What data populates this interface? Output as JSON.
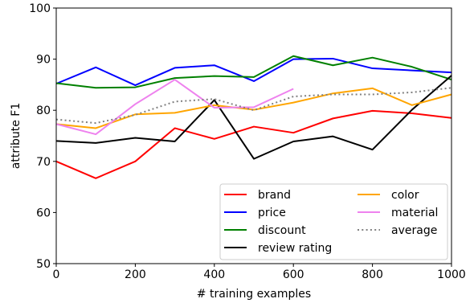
{
  "chart_data": {
    "type": "line",
    "xlabel": "# training examples",
    "ylabel": "attribute F1",
    "xlim": [
      0,
      1000
    ],
    "ylim": [
      50,
      100
    ],
    "xticks": [
      0,
      200,
      400,
      600,
      800,
      1000
    ],
    "yticks": [
      50,
      60,
      70,
      80,
      90,
      100
    ],
    "grid": false,
    "legend_position": "lower-right",
    "series": [
      {
        "name": "brand",
        "color": "#ff0000",
        "style": "solid",
        "x": [
          0,
          100,
          200,
          300,
          400,
          500,
          600,
          700,
          800,
          900,
          1000
        ],
        "y": [
          70.0,
          66.7,
          70.0,
          76.5,
          74.4,
          76.8,
          75.6,
          78.4,
          79.9,
          79.4,
          78.5
        ]
      },
      {
        "name": "price",
        "color": "#0000ff",
        "style": "solid",
        "x": [
          0,
          100,
          200,
          300,
          400,
          500,
          600,
          700,
          800,
          900,
          1000
        ],
        "y": [
          85.2,
          88.4,
          84.9,
          88.3,
          88.8,
          85.7,
          90.0,
          90.1,
          88.2,
          87.8,
          87.4
        ]
      },
      {
        "name": "discount",
        "color": "#008000",
        "style": "solid",
        "x": [
          0,
          100,
          200,
          300,
          400,
          500,
          600,
          700,
          800,
          900,
          1000
        ],
        "y": [
          85.3,
          84.4,
          84.5,
          86.3,
          86.7,
          86.5,
          90.6,
          88.8,
          90.3,
          88.5,
          86.0
        ]
      },
      {
        "name": "review rating",
        "color": "#000000",
        "style": "solid",
        "x": [
          0,
          100,
          200,
          300,
          400,
          500,
          600,
          700,
          800,
          900,
          1000
        ],
        "y": [
          74.0,
          73.6,
          74.6,
          73.9,
          82.0,
          70.5,
          73.9,
          74.9,
          72.3,
          80.1,
          86.8
        ]
      },
      {
        "name": "color",
        "color": "#ffa500",
        "style": "solid",
        "x": [
          0,
          100,
          200,
          300,
          400,
          500,
          600,
          700,
          800,
          900,
          1000
        ],
        "y": [
          77.3,
          76.5,
          79.2,
          79.5,
          81.0,
          80.1,
          81.5,
          83.3,
          84.3,
          81.0,
          83.1
        ]
      },
      {
        "name": "material",
        "color": "#ee82ee",
        "style": "solid",
        "x": [
          0,
          100,
          200,
          300,
          400,
          500,
          600
        ],
        "y": [
          77.3,
          75.3,
          81.2,
          86.0,
          80.5,
          80.6,
          84.2
        ]
      },
      {
        "name": "average",
        "color": "#808080",
        "style": "dotted",
        "x": [
          0,
          100,
          200,
          300,
          400,
          500,
          600,
          700,
          800,
          900,
          1000
        ],
        "y": [
          78.2,
          77.5,
          79.1,
          81.7,
          82.2,
          80.0,
          82.7,
          83.1,
          83.1,
          83.5,
          84.4
        ]
      }
    ]
  }
}
